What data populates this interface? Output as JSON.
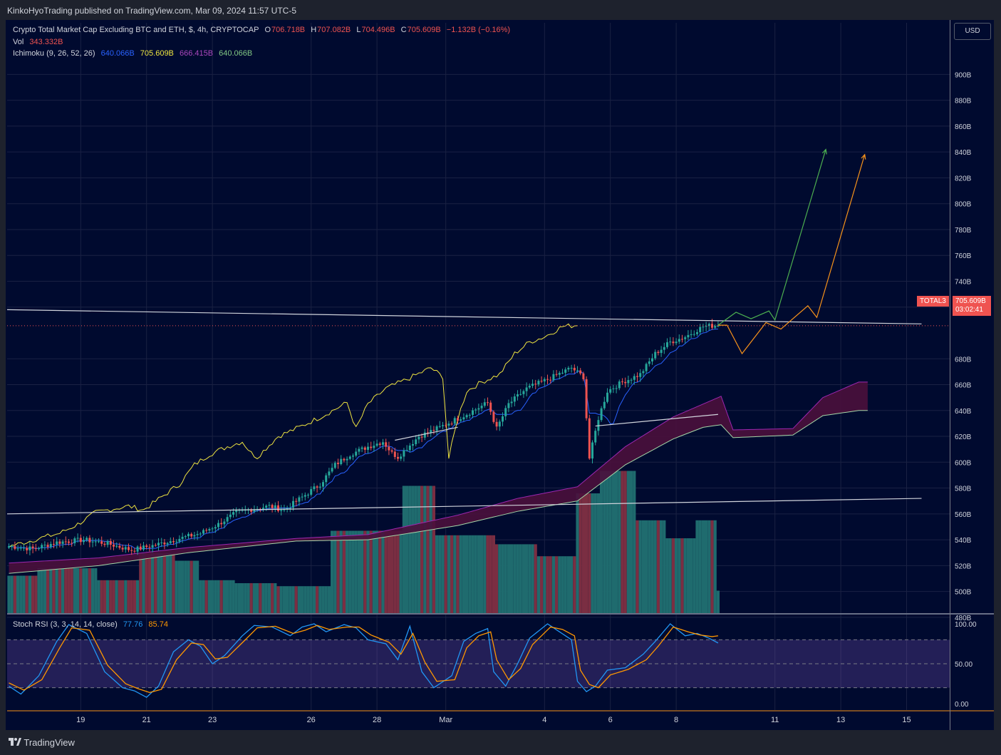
{
  "header": {
    "published": "KinkoHyoTrading published on TradingView.com, Mar 09, 2024 11:57 UTC-5"
  },
  "legend": {
    "main": {
      "title": "Crypto Total Market Cap Excluding BTC and ETH, $, 4h, CRYPTOCAP",
      "o_label": "O",
      "o": "706.718B",
      "h_label": "H",
      "h": "707.082B",
      "l_label": "L",
      "l": "704.496B",
      "c_label": "C",
      "c": "705.609B",
      "chg": "−1.132B (−0.16%)"
    },
    "vol": {
      "label": "Vol",
      "value": "343.332B"
    },
    "ichimoku": {
      "label": "Ichimoku (9, 26, 52, 26)",
      "v1": "640.066B",
      "v2": "705.609B",
      "v3": "666.415B",
      "v4": "640.066B"
    },
    "stoch": {
      "label": "Stoch RSI (3, 3, 14, 14, close)",
      "k": "77.76",
      "d": "85.74"
    }
  },
  "price_axis": {
    "currency": "USD",
    "ticks": [
      "900B",
      "880B",
      "860B",
      "840B",
      "820B",
      "800B",
      "780B",
      "760B",
      "740B",
      "720B",
      "680B",
      "660B",
      "640B",
      "620B",
      "600B",
      "580B",
      "560B",
      "540B",
      "520B",
      "500B",
      "480B"
    ]
  },
  "price_tag": {
    "symbol": "TOTAL3",
    "price": "705.609B",
    "countdown": "03:02:41"
  },
  "stoch_axis": {
    "ticks": [
      "100.00",
      "50.00",
      "0.00"
    ]
  },
  "time_axis": {
    "labels": [
      "19",
      "21",
      "23",
      "26",
      "28",
      "Mar",
      "4",
      "6",
      "8",
      "11",
      "13",
      "15"
    ]
  },
  "footer": {
    "brand": "TradingView"
  },
  "colors": {
    "bull": "#26a69a",
    "bear": "#ef5350",
    "tenkan": "#2962ff",
    "chikou": "#f0e640",
    "cloud": "#4a0f3c",
    "spanA": "#9c27b0",
    "spanB": "#a5d6a7",
    "orange": "#f7931a",
    "green": "#4caf50"
  },
  "chart_data": [
    {
      "type": "candlestick",
      "title": "Crypto Total Market Cap Excluding BTC and ETH, $, 4h, CRYPTOCAP",
      "ylim": [
        465,
        910
      ],
      "price_ticks": [
        480,
        500,
        520,
        540,
        560,
        580,
        600,
        620,
        640,
        660,
        680,
        720,
        740,
        760,
        780,
        800,
        820,
        840,
        860,
        880,
        900
      ],
      "last_price": 705.609,
      "candles_keyframes": [
        [
          0,
          535
        ],
        [
          8,
          533
        ],
        [
          16,
          538
        ],
        [
          25,
          540
        ],
        [
          33,
          537
        ],
        [
          41,
          532
        ],
        [
          49,
          536
        ],
        [
          57,
          541
        ],
        [
          64,
          545
        ],
        [
          70,
          552
        ],
        [
          76,
          561
        ],
        [
          82,
          564
        ],
        [
          87,
          566
        ],
        [
          92,
          563
        ],
        [
          98,
          573
        ],
        [
          104,
          583
        ],
        [
          109,
          598
        ],
        [
          114,
          606
        ],
        [
          120,
          612
        ],
        [
          125,
          616
        ],
        [
          128,
          607
        ],
        [
          130,
          604
        ],
        [
          133,
          611
        ],
        [
          137,
          620
        ],
        [
          144,
          627
        ],
        [
          152,
          636
        ],
        [
          156,
          641
        ],
        [
          160,
          646
        ],
        [
          163,
          626
        ],
        [
          167,
          645
        ],
        [
          173,
          657
        ],
        [
          180,
          664
        ],
        [
          188,
          673
        ],
        [
          192,
          666
        ],
        [
          194,
          603
        ],
        [
          197,
          634
        ],
        [
          200,
          655
        ],
        [
          205,
          662
        ],
        [
          211,
          668
        ],
        [
          216,
          684
        ],
        [
          221,
          693
        ],
        [
          226,
          697
        ],
        [
          232,
          705
        ],
        [
          237,
          706
        ]
      ],
      "trendlines": [
        {
          "name": "upper-resistance",
          "points": [
            [
              -1,
              718
            ],
            [
              305,
              707
            ]
          ]
        },
        {
          "name": "lower-support",
          "points": [
            [
              -1,
              560
            ],
            [
              305,
              572
            ]
          ]
        },
        {
          "name": "mid-support-1",
          "points": [
            [
              129,
              617
            ],
            [
              150,
              627
            ]
          ]
        },
        {
          "name": "mid-support-2",
          "points": [
            [
              196,
              628
            ],
            [
              237,
              637
            ]
          ]
        }
      ],
      "projections": [
        {
          "name": "green-scenario",
          "points": [
            [
              237,
              706
            ],
            [
              243,
              716
            ],
            [
              248,
              711
            ],
            [
              254,
              717
            ],
            [
              256,
              710
            ],
            [
              273,
              842
            ]
          ]
        },
        {
          "name": "orange-scenario",
          "points": [
            [
              237,
              706
            ],
            [
              240,
              706
            ],
            [
              245,
              684
            ],
            [
              253,
              708
            ],
            [
              258,
              703
            ],
            [
              267,
              721
            ],
            [
              270,
              712
            ],
            [
              286,
              838
            ]
          ]
        }
      ]
    },
    {
      "type": "line",
      "title": "Stoch RSI (3, 3, 14, 14, close)",
      "ylim": [
        -8,
        112
      ],
      "band": [
        20,
        80
      ],
      "series": [
        {
          "name": "K",
          "value": 77.76,
          "keyframes": [
            [
              0,
              22
            ],
            [
              4,
              12
            ],
            [
              10,
              35
            ],
            [
              16,
              78
            ],
            [
              20,
              99
            ],
            [
              26,
              88
            ],
            [
              32,
              40
            ],
            [
              38,
              20
            ],
            [
              42,
              16
            ],
            [
              46,
              8
            ],
            [
              50,
              22
            ],
            [
              55,
              65
            ],
            [
              60,
              80
            ],
            [
              64,
              72
            ],
            [
              68,
              50
            ],
            [
              72,
              60
            ],
            [
              78,
              85
            ],
            [
              82,
              98
            ],
            [
              88,
              96
            ],
            [
              94,
              85
            ],
            [
              98,
              96
            ],
            [
              102,
              100
            ],
            [
              106,
              90
            ],
            [
              112,
              99
            ],
            [
              116,
              95
            ],
            [
              120,
              80
            ],
            [
              126,
              75
            ],
            [
              130,
              55
            ],
            [
              134,
              97
            ],
            [
              138,
              40
            ],
            [
              142,
              20
            ],
            [
              148,
              35
            ],
            [
              152,
              78
            ],
            [
              156,
              88
            ],
            [
              160,
              94
            ],
            [
              162,
              40
            ],
            [
              166,
              22
            ],
            [
              170,
              50
            ],
            [
              174,
              82
            ],
            [
              180,
              100
            ],
            [
              184,
              90
            ],
            [
              188,
              80
            ],
            [
              190,
              28
            ],
            [
              193,
              15
            ],
            [
              196,
              22
            ],
            [
              200,
              42
            ],
            [
              206,
              45
            ],
            [
              212,
              62
            ],
            [
              216,
              78
            ],
            [
              221,
              100
            ],
            [
              226,
              85
            ],
            [
              230,
              88
            ],
            [
              234,
              82
            ],
            [
              237,
              76
            ]
          ]
        },
        {
          "name": "D",
          "value": 85.74,
          "keyframes": [
            [
              0,
              26
            ],
            [
              5,
              17
            ],
            [
              11,
              30
            ],
            [
              17,
              70
            ],
            [
              21,
              95
            ],
            [
              27,
              92
            ],
            [
              33,
              48
            ],
            [
              39,
              25
            ],
            [
              43,
              19
            ],
            [
              47,
              14
            ],
            [
              51,
              18
            ],
            [
              56,
              55
            ],
            [
              61,
              76
            ],
            [
              65,
              74
            ],
            [
              69,
              56
            ],
            [
              73,
              58
            ],
            [
              79,
              80
            ],
            [
              83,
              95
            ],
            [
              89,
              97
            ],
            [
              95,
              88
            ],
            [
              99,
              92
            ],
            [
              103,
              98
            ],
            [
              107,
              93
            ],
            [
              113,
              96
            ],
            [
              117,
              96
            ],
            [
              121,
              86
            ],
            [
              127,
              77
            ],
            [
              131,
              62
            ],
            [
              135,
              88
            ],
            [
              139,
              52
            ],
            [
              143,
              28
            ],
            [
              149,
              30
            ],
            [
              153,
              70
            ],
            [
              157,
              85
            ],
            [
              161,
              90
            ],
            [
              163,
              55
            ],
            [
              167,
              30
            ],
            [
              171,
              44
            ],
            [
              175,
              74
            ],
            [
              181,
              96
            ],
            [
              185,
              93
            ],
            [
              189,
              85
            ],
            [
              191,
              42
            ],
            [
              194,
              24
            ],
            [
              197,
              20
            ],
            [
              201,
              36
            ],
            [
              207,
              43
            ],
            [
              213,
              55
            ],
            [
              217,
              72
            ],
            [
              222,
              96
            ],
            [
              227,
              90
            ],
            [
              231,
              86
            ],
            [
              235,
              84
            ],
            [
              237,
              85
            ]
          ]
        }
      ]
    }
  ]
}
